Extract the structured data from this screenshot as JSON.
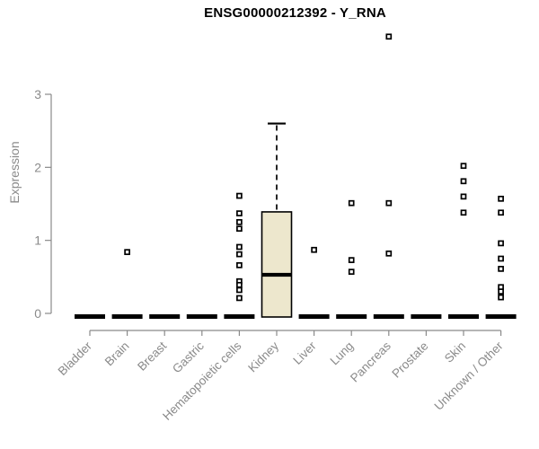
{
  "colors": {
    "box_fill": "#EDE7CD",
    "box_stroke": "#000000",
    "axis": "#8a8a8a",
    "tick_text": "#8a8a8a",
    "title_text": "#000000",
    "outlier_stroke": "#000000",
    "outlier_fill": "#ffffff"
  },
  "chart_data": {
    "type": "boxplot",
    "title": "ENSG00000212392 - Y_RNA",
    "xlabel": "",
    "ylabel": "Expression",
    "yticks": [
      0,
      1,
      2,
      3
    ],
    "ylim": [
      -0.23,
      3.95
    ],
    "grid": false,
    "legend": "none",
    "categories": [
      "Bladder",
      "Brain",
      "Breast",
      "Gastric",
      "Hematopoietic cells",
      "Kidney",
      "Liver",
      "Lung",
      "Pancreas",
      "Prostate",
      "Skin",
      "Unknown / Other"
    ],
    "series": [
      {
        "name": "Bladder",
        "q1": 0,
        "median": 0,
        "q3": 0,
        "whisker_low": 0,
        "whisker_high": 0,
        "outliers": []
      },
      {
        "name": "Brain",
        "q1": 0,
        "median": 0,
        "q3": 0,
        "whisker_low": 0,
        "whisker_high": 0,
        "outliers": [
          0.84
        ]
      },
      {
        "name": "Breast",
        "q1": 0,
        "median": 0,
        "q3": 0,
        "whisker_low": 0,
        "whisker_high": 0,
        "outliers": []
      },
      {
        "name": "Gastric",
        "q1": 0,
        "median": 0,
        "q3": 0,
        "whisker_low": 0,
        "whisker_high": 0,
        "outliers": []
      },
      {
        "name": "Hematopoietic cells",
        "q1": 0,
        "median": 0,
        "q3": 0,
        "whisker_low": 0,
        "whisker_high": 0,
        "outliers": [
          1.61,
          1.37,
          1.25,
          1.16,
          0.91,
          0.81,
          0.66,
          0.44,
          0.39,
          0.32,
          0.21
        ]
      },
      {
        "name": "Kidney",
        "q1": 0,
        "median": 0.53,
        "q3": 1.39,
        "whisker_low": 0,
        "whisker_high": 2.6,
        "outliers": []
      },
      {
        "name": "Liver",
        "q1": 0,
        "median": 0,
        "q3": 0,
        "whisker_low": 0,
        "whisker_high": 0,
        "outliers": [
          0.87
        ]
      },
      {
        "name": "Lung",
        "q1": 0,
        "median": 0,
        "q3": 0,
        "whisker_low": 0,
        "whisker_high": 0,
        "outliers": [
          1.51,
          0.73,
          0.57
        ]
      },
      {
        "name": "Pancreas",
        "q1": 0,
        "median": 0,
        "q3": 0,
        "whisker_low": 0,
        "whisker_high": 0,
        "outliers": [
          3.79,
          1.51,
          0.82
        ]
      },
      {
        "name": "Prostate",
        "q1": 0,
        "median": 0,
        "q3": 0,
        "whisker_low": 0,
        "whisker_high": 0,
        "outliers": []
      },
      {
        "name": "Skin",
        "q1": 0,
        "median": 0,
        "q3": 0,
        "whisker_low": 0,
        "whisker_high": 0,
        "outliers": [
          2.02,
          1.81,
          1.6,
          1.38
        ]
      },
      {
        "name": "Unknown / Other",
        "q1": 0,
        "median": 0,
        "q3": 0,
        "whisker_low": 0,
        "whisker_high": 0,
        "outliers": [
          1.57,
          1.38,
          0.96,
          0.75,
          0.61,
          0.36,
          0.3,
          0.22
        ]
      }
    ]
  }
}
